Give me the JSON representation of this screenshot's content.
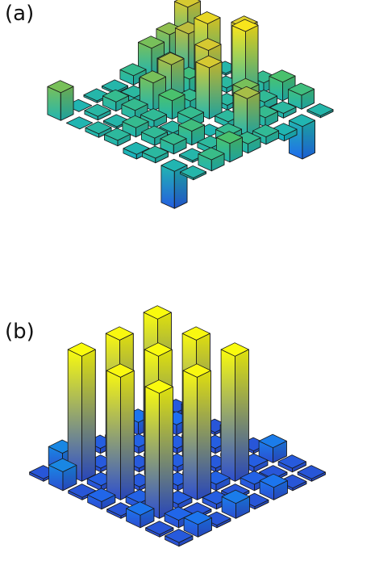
{
  "panels": [
    {
      "label": "(a)"
    },
    {
      "label": "(b)"
    }
  ],
  "colormap": [
    "#3e26a8",
    "#1d6ff2",
    "#13b1c8",
    "#4ac16d",
    "#c6bd3a",
    "#f8e31d",
    "#f9fb0e"
  ],
  "chart_data": [
    {
      "type": "bar3d",
      "title": "(a)",
      "grid": "8x8",
      "rows": 8,
      "cols": 8,
      "zlim": [
        -0.6,
        1.0
      ],
      "values": [
        [
          0.3,
          0.0,
          0.02,
          0.02,
          0.1,
          0.3,
          0.35,
          0.55
        ],
        [
          0.0,
          0.04,
          0.1,
          0.05,
          0.1,
          0.22,
          0.45,
          0.3
        ],
        [
          0.04,
          0.02,
          0.1,
          0.3,
          0.4,
          0.15,
          0.65,
          0.02
        ],
        [
          0.06,
          0.1,
          0.08,
          0.2,
          0.1,
          0.55,
          0.05,
          0.6
        ],
        [
          -0.05,
          0.08,
          0.04,
          0.1,
          0.55,
          0.05,
          0.75,
          0.1
        ],
        [
          0.05,
          0.1,
          0.15,
          0.0,
          0.06,
          0.3,
          0.08,
          0.2
        ],
        [
          -0.4,
          0.02,
          0.06,
          0.1,
          0.4,
          0.1,
          0.05,
          0.15
        ],
        [
          0.02,
          0.12,
          0.2,
          0.1,
          0.08,
          -0.06,
          -0.35,
          0.02
        ]
      ]
    },
    {
      "type": "bar3d",
      "title": "(b)",
      "grid": "8x8",
      "rows": 8,
      "cols": 8,
      "zlim": [
        -0.1,
        1.0
      ],
      "values": [
        [
          0.02,
          0.15,
          0.02,
          0.04,
          0.02,
          0.1,
          0.02,
          0.03
        ],
        [
          0.15,
          1.0,
          0.03,
          0.98,
          0.05,
          1.0,
          0.08,
          0.12
        ],
        [
          0.02,
          0.04,
          0.02,
          0.03,
          0.02,
          0.04,
          0.02,
          0.02
        ],
        [
          0.06,
          0.98,
          0.03,
          1.0,
          0.04,
          0.98,
          0.04,
          0.1
        ],
        [
          0.02,
          0.05,
          0.02,
          0.04,
          0.02,
          0.03,
          0.02,
          0.02
        ],
        [
          0.1,
          1.0,
          0.04,
          0.98,
          0.05,
          1.0,
          0.04,
          0.12
        ],
        [
          0.02,
          0.06,
          0.02,
          0.04,
          0.02,
          0.05,
          0.02,
          0.03
        ],
        [
          0.03,
          0.1,
          0.02,
          0.12,
          0.02,
          0.1,
          0.02,
          0.02
        ]
      ]
    }
  ]
}
